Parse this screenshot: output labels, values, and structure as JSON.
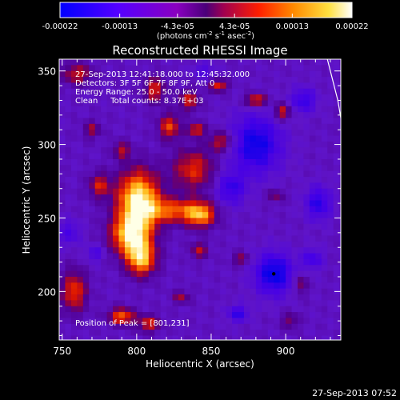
{
  "chart_data": {
    "type": "heatmap",
    "title": "Reconstructed RHESSI Image",
    "xlabel": "Heliocentric X (arcsec)",
    "ylabel": "Heliocentric Y (arcsec)",
    "xlim": [
      748,
      937
    ],
    "ylim": [
      167,
      358
    ],
    "x_ticks": [
      750,
      800,
      850,
      900
    ],
    "y_ticks": [
      200,
      250,
      300,
      350
    ],
    "grid": false,
    "colorbar": {
      "position": "top",
      "tick_labels": [
        "-0.00022",
        "-0.00013",
        "-4.3e-05",
        "4.3e-05",
        "0.00013",
        "0.00022"
      ],
      "tick_values": [
        -0.00022,
        -0.00013,
        -4.3e-05,
        4.3e-05,
        0.00013,
        0.00022
      ],
      "range": [
        -0.00022,
        0.00022
      ],
      "unit_parts": [
        "(photons cm",
        "-2",
        " s",
        "-1",
        " asec",
        "-2",
        ")"
      ]
    },
    "info_lines": [
      "27-Sep-2013 12:41:18.000 to 12:45:32.000",
      "Detectors: 3F 5F 6F 7F 8F 9F, Att 0",
      "Energy Range: 25.0 - 50.0 keV",
      "Clean     Total counts: 8.37E+03"
    ],
    "peak_label": "Position of Peak = [801,231]",
    "peak": [
      801,
      231
    ],
    "limb_points": [
      [
        928,
        358
      ],
      [
        935,
        330
      ],
      [
        940,
        300
      ],
      [
        944,
        270
      ],
      [
        948,
        240
      ],
      [
        951,
        210
      ],
      [
        954,
        180
      ]
    ],
    "blobs": [
      {
        "x": 801,
        "y": 262,
        "sx": 10,
        "sy": 14,
        "a": 1.0
      },
      {
        "x": 796,
        "y": 238,
        "sx": 9,
        "sy": 9,
        "a": 0.85
      },
      {
        "x": 803,
        "y": 222,
        "sx": 7,
        "sy": 8,
        "a": 0.8
      },
      {
        "x": 825,
        "y": 255,
        "sx": 14,
        "sy": 6,
        "a": 0.55
      },
      {
        "x": 843,
        "y": 252,
        "sx": 7,
        "sy": 6,
        "a": 0.65
      },
      {
        "x": 838,
        "y": 283,
        "sx": 10,
        "sy": 10,
        "a": 0.5
      },
      {
        "x": 822,
        "y": 312,
        "sx": 5,
        "sy": 6,
        "a": 0.55
      },
      {
        "x": 840,
        "y": 310,
        "sx": 4,
        "sy": 3,
        "a": 0.55
      },
      {
        "x": 857,
        "y": 302,
        "sx": 6,
        "sy": 5,
        "a": 0.45
      },
      {
        "x": 775,
        "y": 272,
        "sx": 5,
        "sy": 6,
        "a": 0.45
      },
      {
        "x": 758,
        "y": 200,
        "sx": 6,
        "sy": 10,
        "a": 0.55
      },
      {
        "x": 790,
        "y": 183,
        "sx": 6,
        "sy": 4,
        "a": 0.65
      },
      {
        "x": 808,
        "y": 178,
        "sx": 5,
        "sy": 4,
        "a": 0.5
      },
      {
        "x": 842,
        "y": 228,
        "sx": 4,
        "sy": 4,
        "a": 0.4
      },
      {
        "x": 812,
        "y": 337,
        "sx": 5,
        "sy": 6,
        "a": 0.5
      },
      {
        "x": 835,
        "y": 330,
        "sx": 5,
        "sy": 5,
        "a": 0.45
      },
      {
        "x": 855,
        "y": 340,
        "sx": 4,
        "sy": 3,
        "a": 0.55
      },
      {
        "x": 880,
        "y": 330,
        "sx": 5,
        "sy": 3,
        "a": 0.6
      },
      {
        "x": 898,
        "y": 322,
        "sx": 4,
        "sy": 4,
        "a": 0.5
      },
      {
        "x": 760,
        "y": 348,
        "sx": 7,
        "sy": 5,
        "a": 0.45
      },
      {
        "x": 790,
        "y": 296,
        "sx": 4,
        "sy": 4,
        "a": 0.4
      },
      {
        "x": 870,
        "y": 222,
        "sx": 4,
        "sy": 3,
        "a": 0.35
      },
      {
        "x": 830,
        "y": 196,
        "sx": 4,
        "sy": 3,
        "a": 0.35
      },
      {
        "x": 893,
        "y": 265,
        "sx": 4,
        "sy": 3,
        "a": 0.3
      },
      {
        "x": 770,
        "y": 310,
        "sx": 4,
        "sy": 4,
        "a": 0.35
      },
      {
        "x": 903,
        "y": 180,
        "sx": 4,
        "sy": 4,
        "a": 0.3
      },
      {
        "x": 910,
        "y": 205,
        "sx": 3,
        "sy": 5,
        "a": 0.35
      },
      {
        "x": 892,
        "y": 212,
        "sx": 9,
        "sy": 10,
        "a": -0.6
      },
      {
        "x": 880,
        "y": 300,
        "sx": 12,
        "sy": 14,
        "a": -0.55
      },
      {
        "x": 912,
        "y": 330,
        "sx": 6,
        "sy": 6,
        "a": -0.4
      },
      {
        "x": 863,
        "y": 270,
        "sx": 7,
        "sy": 8,
        "a": -0.4
      },
      {
        "x": 922,
        "y": 260,
        "sx": 6,
        "sy": 8,
        "a": -0.45
      },
      {
        "x": 755,
        "y": 240,
        "sx": 5,
        "sy": 6,
        "a": -0.3
      },
      {
        "x": 868,
        "y": 185,
        "sx": 5,
        "sy": 4,
        "a": -0.4
      },
      {
        "x": 918,
        "y": 222,
        "sx": 5,
        "sy": 5,
        "a": -0.35
      },
      {
        "x": 845,
        "y": 350,
        "sx": 5,
        "sy": 4,
        "a": -0.25
      },
      {
        "x": 772,
        "y": 226,
        "sx": 4,
        "sy": 4,
        "a": -0.3
      }
    ]
  },
  "footer": {
    "timestamp": "27-Sep-2013 07:52"
  }
}
